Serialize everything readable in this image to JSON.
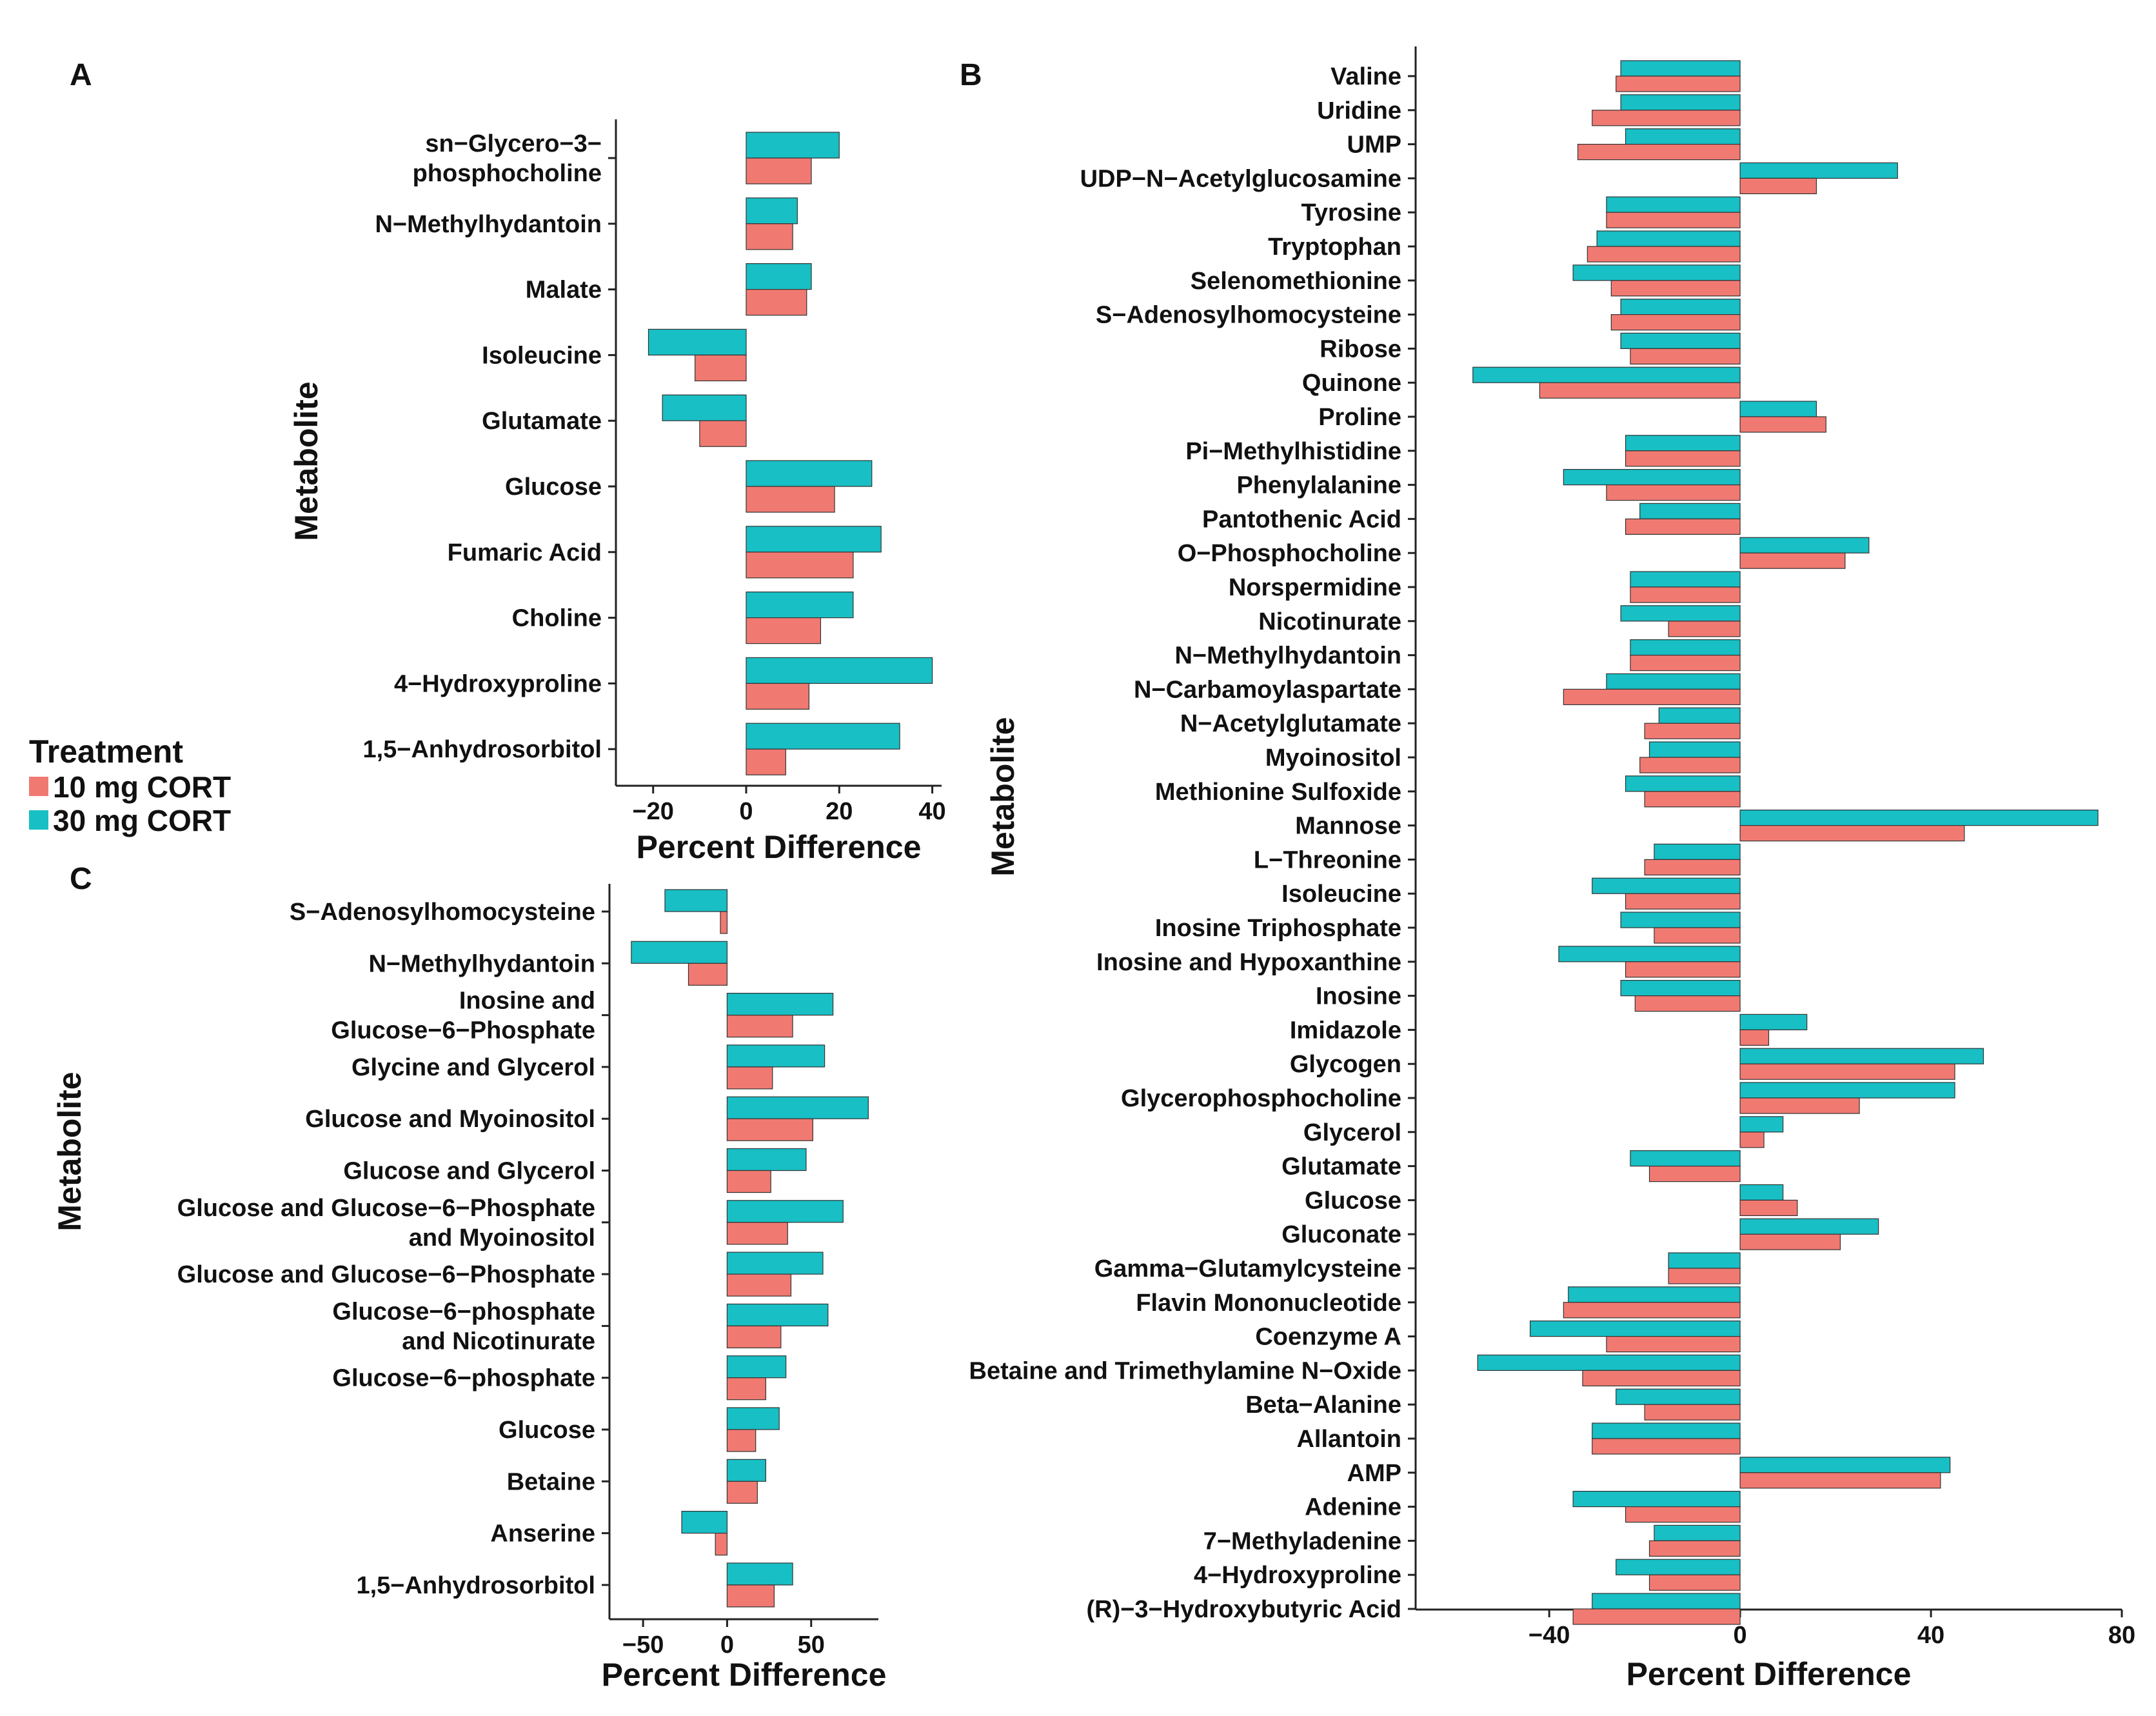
{
  "legend": {
    "title": "Treatment",
    "items": [
      {
        "label": "10 mg CORT",
        "color": "#F07A72"
      },
      {
        "label": "30 mg CORT",
        "color": "#18BFC4"
      }
    ]
  },
  "chart_data": [
    {
      "panel": "A",
      "type": "bar",
      "orientation": "horizontal",
      "xlabel": "Percent Difference",
      "ylabel": "Metabolite",
      "xlim": [
        -28,
        42
      ],
      "xticks": [
        -20,
        0,
        20,
        40
      ],
      "categories": [
        "sn-Glycero-3-phosphocholine",
        "N-Methylhydantoin",
        "Malate",
        "Isoleucine",
        "Glutamate",
        "Glucose",
        "Fumaric Acid",
        "Choline",
        "4-Hydroxyproline",
        "1,5-Anhydrosorbitol"
      ],
      "category_lines": [
        [
          "sn−Glycero−3−",
          "phosphocholine"
        ],
        [
          "N−Methylhydantoin"
        ],
        [
          "Malate"
        ],
        [
          "Isoleucine"
        ],
        [
          "Glutamate"
        ],
        [
          "Glucose"
        ],
        [
          "Fumaric Acid"
        ],
        [
          "Choline"
        ],
        [
          "4−Hydroxyproline"
        ],
        [
          "1,5−Anhydrosorbitol"
        ]
      ],
      "series": [
        {
          "name": "30 mg CORT",
          "values": [
            20,
            11,
            14,
            -21,
            -18,
            27,
            29,
            23,
            40,
            33
          ]
        },
        {
          "name": "10 mg CORT",
          "values": [
            14,
            10,
            13,
            -11,
            -10,
            19,
            23,
            16,
            13.5,
            8.5
          ]
        }
      ]
    },
    {
      "panel": "B",
      "type": "bar",
      "orientation": "horizontal",
      "xlabel": "Percent Difference",
      "ylabel": "Metabolite",
      "xlim": [
        -68,
        80
      ],
      "xticks": [
        -40,
        0,
        40,
        80
      ],
      "categories": [
        "Valine",
        "Uridine",
        "UMP",
        "UDP-N-Acetylglucosamine",
        "Tyrosine",
        "Tryptophan",
        "Selenomethionine",
        "S-Adenosylhomocysteine",
        "Ribose",
        "Quinone",
        "Proline",
        "Pi-Methylhistidine",
        "Phenylalanine",
        "Pantothenic Acid",
        "O-Phosphocholine",
        "Norspermidine",
        "Nicotinurate",
        "N-Methylhydantoin",
        "N-Carbamoylaspartate",
        "N-Acetylglutamate",
        "Myoinositol",
        "Methionine Sulfoxide",
        "Mannose",
        "L-Threonine",
        "Isoleucine",
        "Inosine Triphosphate",
        "Inosine and Hypoxanthine",
        "Inosine",
        "Imidazole",
        "Glycogen",
        "Glycerophosphocholine",
        "Glycerol",
        "Glutamate",
        "Glucose",
        "Gluconate",
        "Gamma-Glutamylcysteine",
        "Flavin Mononucleotide",
        "Coenzyme A",
        "Betaine and Trimethylamine N-Oxide",
        "Beta-Alanine",
        "Allantoin",
        "AMP",
        "Adenine",
        "7-Methyladenine",
        "4-Hydroxyproline",
        "(R)-3-Hydroxybutyric Acid"
      ],
      "category_lines": [
        [
          "Valine"
        ],
        [
          "Uridine"
        ],
        [
          "UMP"
        ],
        [
          "UDP−N−Acetylglucosamine"
        ],
        [
          "Tyrosine"
        ],
        [
          "Tryptophan"
        ],
        [
          "Selenomethionine"
        ],
        [
          "S−Adenosylhomocysteine"
        ],
        [
          "Ribose"
        ],
        [
          "Quinone"
        ],
        [
          "Proline"
        ],
        [
          "Pi−Methylhistidine"
        ],
        [
          "Phenylalanine"
        ],
        [
          "Pantothenic Acid"
        ],
        [
          "O−Phosphocholine"
        ],
        [
          "Norspermidine"
        ],
        [
          "Nicotinurate"
        ],
        [
          "N−Methylhydantoin"
        ],
        [
          "N−Carbamoylaspartate"
        ],
        [
          "N−Acetylglutamate"
        ],
        [
          "Myoinositol"
        ],
        [
          "Methionine Sulfoxide"
        ],
        [
          "Mannose"
        ],
        [
          "L−Threonine"
        ],
        [
          "Isoleucine"
        ],
        [
          "Inosine Triphosphate"
        ],
        [
          "Inosine and Hypoxanthine"
        ],
        [
          "Inosine"
        ],
        [
          "Imidazole"
        ],
        [
          "Glycogen"
        ],
        [
          "Glycerophosphocholine"
        ],
        [
          "Glycerol"
        ],
        [
          "Glutamate"
        ],
        [
          "Glucose"
        ],
        [
          "Gluconate"
        ],
        [
          "Gamma−Glutamylcysteine"
        ],
        [
          "Flavin Mononucleotide"
        ],
        [
          "Coenzyme A"
        ],
        [
          "Betaine and Trimethylamine N−Oxide"
        ],
        [
          "Beta−Alanine"
        ],
        [
          "Allantoin"
        ],
        [
          "AMP"
        ],
        [
          "Adenine"
        ],
        [
          "7−Methyladenine"
        ],
        [
          "4−Hydroxyproline"
        ],
        [
          "(R)−3−Hydroxybutyric Acid"
        ]
      ],
      "series": [
        {
          "name": "30 mg CORT",
          "values": [
            -25,
            -25,
            -24,
            33,
            -28,
            -30,
            -35,
            -25,
            -25,
            -56,
            16,
            -24,
            -37,
            -21,
            27,
            -23,
            -25,
            -23,
            -28,
            -17,
            -19,
            -24,
            75,
            -18,
            -31,
            -25,
            -38,
            -25,
            14,
            51,
            45,
            9,
            -23,
            9,
            29,
            -15,
            -36,
            -44,
            -55,
            -26,
            -31,
            44,
            -35,
            -18,
            -26,
            -31
          ]
        },
        {
          "name": "10 mg CORT",
          "values": [
            -26,
            -31,
            -34,
            16,
            -28,
            -32,
            -27,
            -27,
            -23,
            -42,
            18,
            -24,
            -28,
            -24,
            22,
            -23,
            -15,
            -23,
            -37,
            -20,
            -21,
            -20,
            47,
            -20,
            -24,
            -18,
            -24,
            -22,
            6,
            45,
            25,
            5,
            -19,
            12,
            21,
            -15,
            -37,
            -28,
            -33,
            -20,
            -31,
            42,
            -24,
            -19,
            -19,
            -35
          ]
        }
      ]
    },
    {
      "panel": "C",
      "type": "bar",
      "orientation": "horizontal",
      "xlabel": "Percent Difference",
      "ylabel": "Metabolite",
      "xlim": [
        -70,
        90
      ],
      "xticks": [
        -50,
        0,
        50
      ],
      "categories": [
        "S-Adenosylhomocysteine",
        "N-Methylhydantoin",
        "Inosine and Glucose-6-Phosphate",
        "Glycine and Glycerol",
        "Glucose and Myoinositol",
        "Glucose and Glycerol",
        "Glucose and Glucose-6-Phosphate and Myoinositol",
        "Glucose and Glucose-6-Phosphate",
        "Glucose-6-phosphate and Nicotinurate",
        "Glucose-6-phosphate",
        "Glucose",
        "Betaine",
        "Anserine",
        "1,5-Anhydrosorbitol"
      ],
      "category_lines": [
        [
          "S−Adenosylhomocysteine"
        ],
        [
          "N−Methylhydantoin"
        ],
        [
          "Inosine and",
          "Glucose−6−Phosphate"
        ],
        [
          "Glycine and Glycerol"
        ],
        [
          "Glucose and Myoinositol"
        ],
        [
          "Glucose and Glycerol"
        ],
        [
          "Glucose and Glucose−6−Phosphate",
          "and Myoinositol"
        ],
        [
          "Glucose and Glucose−6−Phosphate"
        ],
        [
          "Glucose−6−phosphate",
          "and Nicotinurate"
        ],
        [
          "Glucose−6−phosphate"
        ],
        [
          "Glucose"
        ],
        [
          "Betaine"
        ],
        [
          "Anserine"
        ],
        [
          "1,5−Anhydrosorbitol"
        ]
      ],
      "series": [
        {
          "name": "30 mg CORT",
          "values": [
            -37,
            -57,
            63,
            58,
            84,
            47,
            69,
            57,
            60,
            35,
            31,
            23,
            -27,
            39
          ]
        },
        {
          "name": "10 mg CORT",
          "values": [
            -4,
            -23,
            39,
            27,
            51,
            26,
            36,
            38,
            32,
            23,
            17,
            18,
            -7,
            28
          ]
        }
      ]
    }
  ]
}
